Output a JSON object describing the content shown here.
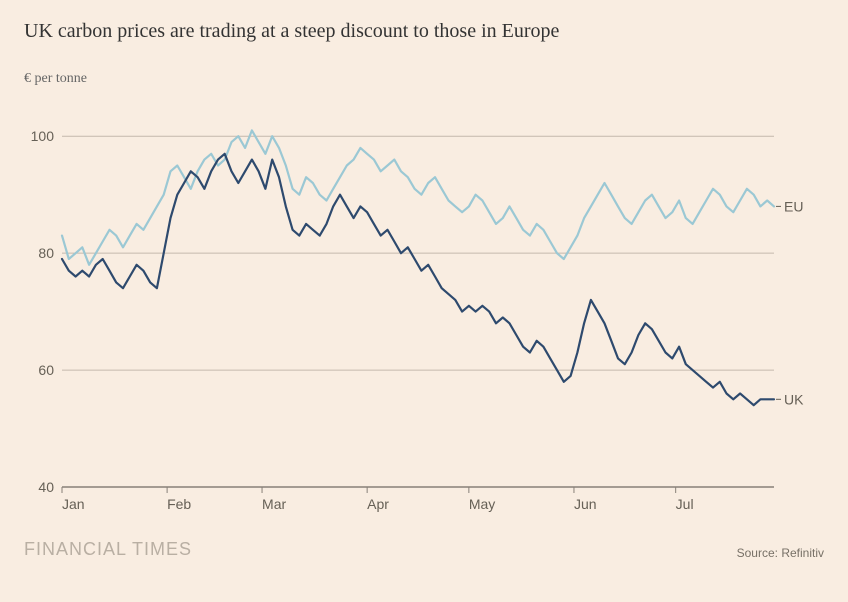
{
  "chart": {
    "type": "line",
    "title": "UK carbon prices are trading at a steep discount to those in Europe",
    "subtitle": "€ per tonne",
    "background_color": "#f9ede1",
    "title_color": "#333333",
    "title_fontsize": 20,
    "subtitle_color": "#666666",
    "subtitle_fontsize": 14,
    "plot": {
      "x_domain": [
        0,
        210
      ],
      "y_domain": [
        40,
        105
      ],
      "y_ticks": [
        40,
        60,
        80,
        100
      ],
      "x_ticks": [
        {
          "pos": 0,
          "label": "Jan"
        },
        {
          "pos": 31,
          "label": "Feb"
        },
        {
          "pos": 59,
          "label": "Mar"
        },
        {
          "pos": 90,
          "label": "Apr"
        },
        {
          "pos": 120,
          "label": "May"
        },
        {
          "pos": 151,
          "label": "Jun"
        },
        {
          "pos": 181,
          "label": "Jul"
        }
      ],
      "gridline_color": "#c4b8ac",
      "axis_line_color": "#888078",
      "tick_label_color": "#666056",
      "tick_fontsize": 14,
      "series": [
        {
          "name": "EU",
          "label": "EU",
          "color": "#9bc8d4",
          "line_width": 2.2,
          "data": [
            [
              0,
              83
            ],
            [
              2,
              79
            ],
            [
              4,
              80
            ],
            [
              6,
              81
            ],
            [
              8,
              78
            ],
            [
              10,
              80
            ],
            [
              12,
              82
            ],
            [
              14,
              84
            ],
            [
              16,
              83
            ],
            [
              18,
              81
            ],
            [
              20,
              83
            ],
            [
              22,
              85
            ],
            [
              24,
              84
            ],
            [
              26,
              86
            ],
            [
              28,
              88
            ],
            [
              30,
              90
            ],
            [
              32,
              94
            ],
            [
              34,
              95
            ],
            [
              36,
              93
            ],
            [
              38,
              91
            ],
            [
              40,
              94
            ],
            [
              42,
              96
            ],
            [
              44,
              97
            ],
            [
              46,
              95
            ],
            [
              48,
              96
            ],
            [
              50,
              99
            ],
            [
              52,
              100
            ],
            [
              54,
              98
            ],
            [
              56,
              101
            ],
            [
              58,
              99
            ],
            [
              60,
              97
            ],
            [
              62,
              100
            ],
            [
              64,
              98
            ],
            [
              66,
              95
            ],
            [
              68,
              91
            ],
            [
              70,
              90
            ],
            [
              72,
              93
            ],
            [
              74,
              92
            ],
            [
              76,
              90
            ],
            [
              78,
              89
            ],
            [
              80,
              91
            ],
            [
              82,
              93
            ],
            [
              84,
              95
            ],
            [
              86,
              96
            ],
            [
              88,
              98
            ],
            [
              90,
              97
            ],
            [
              92,
              96
            ],
            [
              94,
              94
            ],
            [
              96,
              95
            ],
            [
              98,
              96
            ],
            [
              100,
              94
            ],
            [
              102,
              93
            ],
            [
              104,
              91
            ],
            [
              106,
              90
            ],
            [
              108,
              92
            ],
            [
              110,
              93
            ],
            [
              112,
              91
            ],
            [
              114,
              89
            ],
            [
              116,
              88
            ],
            [
              118,
              87
            ],
            [
              120,
              88
            ],
            [
              122,
              90
            ],
            [
              124,
              89
            ],
            [
              126,
              87
            ],
            [
              128,
              85
            ],
            [
              130,
              86
            ],
            [
              132,
              88
            ],
            [
              134,
              86
            ],
            [
              136,
              84
            ],
            [
              138,
              83
            ],
            [
              140,
              85
            ],
            [
              142,
              84
            ],
            [
              144,
              82
            ],
            [
              146,
              80
            ],
            [
              148,
              79
            ],
            [
              150,
              81
            ],
            [
              152,
              83
            ],
            [
              154,
              86
            ],
            [
              156,
              88
            ],
            [
              158,
              90
            ],
            [
              160,
              92
            ],
            [
              162,
              90
            ],
            [
              164,
              88
            ],
            [
              166,
              86
            ],
            [
              168,
              85
            ],
            [
              170,
              87
            ],
            [
              172,
              89
            ],
            [
              174,
              90
            ],
            [
              176,
              88
            ],
            [
              178,
              86
            ],
            [
              180,
              87
            ],
            [
              182,
              89
            ],
            [
              184,
              86
            ],
            [
              186,
              85
            ],
            [
              188,
              87
            ],
            [
              190,
              89
            ],
            [
              192,
              91
            ],
            [
              194,
              90
            ],
            [
              196,
              88
            ],
            [
              198,
              87
            ],
            [
              200,
              89
            ],
            [
              202,
              91
            ],
            [
              204,
              90
            ],
            [
              206,
              88
            ],
            [
              208,
              89
            ],
            [
              210,
              88
            ]
          ]
        },
        {
          "name": "UK",
          "label": "UK",
          "color": "#2e4a6e",
          "line_width": 2.2,
          "data": [
            [
              0,
              79
            ],
            [
              2,
              77
            ],
            [
              4,
              76
            ],
            [
              6,
              77
            ],
            [
              8,
              76
            ],
            [
              10,
              78
            ],
            [
              12,
              79
            ],
            [
              14,
              77
            ],
            [
              16,
              75
            ],
            [
              18,
              74
            ],
            [
              20,
              76
            ],
            [
              22,
              78
            ],
            [
              24,
              77
            ],
            [
              26,
              75
            ],
            [
              28,
              74
            ],
            [
              30,
              80
            ],
            [
              32,
              86
            ],
            [
              34,
              90
            ],
            [
              36,
              92
            ],
            [
              38,
              94
            ],
            [
              40,
              93
            ],
            [
              42,
              91
            ],
            [
              44,
              94
            ],
            [
              46,
              96
            ],
            [
              48,
              97
            ],
            [
              50,
              94
            ],
            [
              52,
              92
            ],
            [
              54,
              94
            ],
            [
              56,
              96
            ],
            [
              58,
              94
            ],
            [
              60,
              91
            ],
            [
              62,
              96
            ],
            [
              64,
              93
            ],
            [
              66,
              88
            ],
            [
              68,
              84
            ],
            [
              70,
              83
            ],
            [
              72,
              85
            ],
            [
              74,
              84
            ],
            [
              76,
              83
            ],
            [
              78,
              85
            ],
            [
              80,
              88
            ],
            [
              82,
              90
            ],
            [
              84,
              88
            ],
            [
              86,
              86
            ],
            [
              88,
              88
            ],
            [
              90,
              87
            ],
            [
              92,
              85
            ],
            [
              94,
              83
            ],
            [
              96,
              84
            ],
            [
              98,
              82
            ],
            [
              100,
              80
            ],
            [
              102,
              81
            ],
            [
              104,
              79
            ],
            [
              106,
              77
            ],
            [
              108,
              78
            ],
            [
              110,
              76
            ],
            [
              112,
              74
            ],
            [
              114,
              73
            ],
            [
              116,
              72
            ],
            [
              118,
              70
            ],
            [
              120,
              71
            ],
            [
              122,
              70
            ],
            [
              124,
              71
            ],
            [
              126,
              70
            ],
            [
              128,
              68
            ],
            [
              130,
              69
            ],
            [
              132,
              68
            ],
            [
              134,
              66
            ],
            [
              136,
              64
            ],
            [
              138,
              63
            ],
            [
              140,
              65
            ],
            [
              142,
              64
            ],
            [
              144,
              62
            ],
            [
              146,
              60
            ],
            [
              148,
              58
            ],
            [
              150,
              59
            ],
            [
              152,
              63
            ],
            [
              154,
              68
            ],
            [
              156,
              72
            ],
            [
              158,
              70
            ],
            [
              160,
              68
            ],
            [
              162,
              65
            ],
            [
              164,
              62
            ],
            [
              166,
              61
            ],
            [
              168,
              63
            ],
            [
              170,
              66
            ],
            [
              172,
              68
            ],
            [
              174,
              67
            ],
            [
              176,
              65
            ],
            [
              178,
              63
            ],
            [
              180,
              62
            ],
            [
              182,
              64
            ],
            [
              184,
              61
            ],
            [
              186,
              60
            ],
            [
              188,
              59
            ],
            [
              190,
              58
            ],
            [
              192,
              57
            ],
            [
              194,
              58
            ],
            [
              196,
              56
            ],
            [
              198,
              55
            ],
            [
              200,
              56
            ],
            [
              202,
              55
            ],
            [
              204,
              54
            ],
            [
              206,
              55
            ],
            [
              208,
              55
            ],
            [
              210,
              55
            ]
          ]
        }
      ],
      "end_labels": [
        {
          "text": "EU",
          "y": 88,
          "color": "#666056"
        },
        {
          "text": "UK",
          "y": 55,
          "color": "#666056"
        }
      ]
    },
    "footer": {
      "brand": "FINANCIAL TIMES",
      "brand_color": "#b9afa3",
      "source": "Source: Refinitiv",
      "source_color": "#777066"
    }
  }
}
